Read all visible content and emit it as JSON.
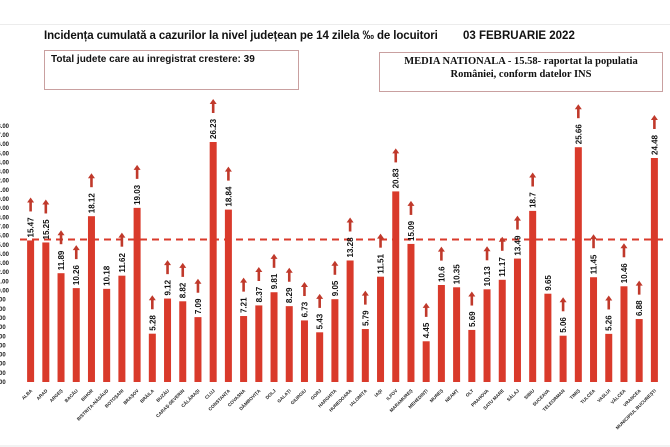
{
  "header": {
    "title": "Incidența cumulată a cazurilor la nivel județean pe 14 zilela ‰ de locuitori",
    "date": "03 FEBRUARIE 2022"
  },
  "info_box": {
    "text": "Total judete care au inregistrat crestere: 39"
  },
  "national_box": {
    "line1": "MEDIA NATIONALA - 15.58-  raportat la populatia",
    "line2": "României, conform datelor INS"
  },
  "chart_data": {
    "type": "bar",
    "title": "Incidența cumulată a cazurilor la nivel județean pe 14 zilela ‰ de locuitori",
    "xlabel": "",
    "ylabel": "",
    "ylim": [
      0,
      28
    ],
    "ytick_step": 1,
    "ytick_format": ".00",
    "grid": false,
    "bar_color": "#d93a2b",
    "arrow_color": "#c0392b",
    "reference_line": {
      "label": "MEDIA NATIONALA",
      "value": 15.58,
      "style": "dashed",
      "color": "#d93a2b"
    },
    "categories": [
      "ALBA",
      "ARAD",
      "ARGEȘ",
      "BACĂU",
      "BIHOR",
      "BISTRIȚA-NĂSĂUD",
      "BOTOȘANI",
      "BRAȘOV",
      "BRĂILA",
      "BUZĂU",
      "CARAȘ-SEVERIN",
      "CĂLĂRAȘI",
      "CLUJ",
      "CONSTANȚA",
      "COVASNA",
      "DÂMBOVIȚA",
      "DOLJ",
      "GALAȚI",
      "GIURGIU",
      "GORJ",
      "HARGHITA",
      "HUNEDOARA",
      "IALOMIȚA",
      "IAȘI",
      "ILFOV",
      "MARAMUREȘ",
      "MEHEDINȚI",
      "MUREȘ",
      "NEAMȚ",
      "OLT",
      "PRAHOVA",
      "SATU MARE",
      "SĂLAJ",
      "SIBIU",
      "SUCEAVA",
      "TELEORMAN",
      "TIMIȘ",
      "TULCEA",
      "VASLUI",
      "VÂLCEA",
      "VRANCEA",
      "MUNICIPIUL BUCUREȘTI"
    ],
    "values": [
      15.47,
      15.25,
      11.89,
      10.26,
      18.12,
      10.18,
      11.62,
      19.03,
      5.28,
      9.12,
      8.82,
      7.09,
      26.23,
      18.84,
      7.21,
      8.37,
      9.81,
      8.29,
      6.73,
      5.43,
      9.05,
      13.28,
      5.79,
      11.51,
      20.83,
      15.09,
      4.45,
      10.6,
      10.35,
      5.69,
      10.13,
      11.17,
      13.49,
      18.7,
      9.65,
      5.06,
      25.66,
      11.45,
      5.26,
      10.46,
      6.88,
      24.48
    ],
    "labels": [
      "15.47",
      "15.25",
      "11.89",
      "10.26",
      "18.12",
      "10.18",
      "11.62",
      "19.03",
      "5.28",
      "9.12",
      "8.82",
      "7.09",
      "26.23",
      "18.84",
      "7.21",
      "8.37",
      "9.81",
      "8.29",
      "6.73",
      "5.43",
      "9.05",
      "13.28",
      "5.79",
      "11.51",
      "20.83",
      "15.09",
      "4.45",
      "10.6",
      "10.35",
      "5.69",
      "10.13",
      "11.17",
      "13.49",
      "18.7",
      "9.65",
      "5.06",
      "25.66",
      "11.45",
      "5.26",
      "10.46",
      "6.88",
      "24.48"
    ],
    "increase": [
      true,
      true,
      true,
      true,
      true,
      false,
      true,
      true,
      true,
      true,
      true,
      true,
      true,
      true,
      true,
      true,
      true,
      true,
      true,
      true,
      true,
      true,
      true,
      true,
      true,
      true,
      true,
      true,
      false,
      true,
      true,
      true,
      true,
      true,
      false,
      true,
      true,
      true,
      true,
      true,
      true,
      true
    ]
  }
}
